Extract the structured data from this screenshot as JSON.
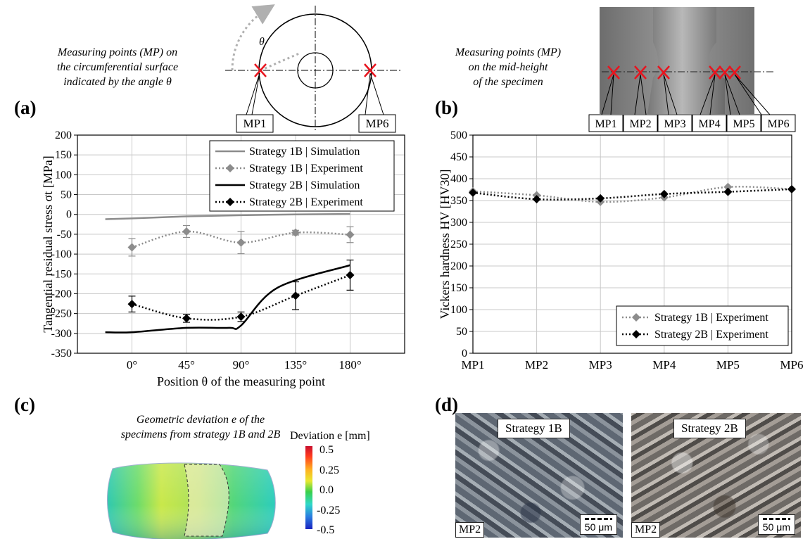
{
  "panel_a": {
    "label": "(a)",
    "note_lines": [
      "Measuring points (MP) on",
      "the circumferential surface",
      "indicated by the angle θ"
    ],
    "angle_symbol": "θ",
    "mp_left": "MP1",
    "mp_right": "MP6"
  },
  "panel_b": {
    "label": "(b)",
    "note_lines": [
      "Measuring points (MP)",
      "on the mid-height",
      "of the specimen"
    ],
    "mp_labels": [
      "MP1",
      "MP2",
      "MP3",
      "MP4",
      "MP5",
      "MP6"
    ]
  },
  "panel_c": {
    "label": "(c)"
  },
  "panel_d": {
    "label": "(d)"
  },
  "deviation": {
    "note_lines": [
      "Geometric deviation e of the",
      "specimens from strategy 1B and 2B"
    ],
    "legend_title": "Deviation e [mm]",
    "legend_ticks": [
      "0.5",
      "0.25",
      "0.0",
      "-0.25",
      "-0.5"
    ]
  },
  "micrographs": [
    {
      "title": "Strategy 1B",
      "mp": "MP2",
      "scale": "50 μm"
    },
    {
      "title": "Strategy 2B",
      "mp": "MP2",
      "scale": "50 μm"
    }
  ],
  "colors": {
    "grey_series": "#8c8c8c",
    "black_series": "#000000",
    "grid": "#c8c8c8",
    "marker_red": "#e8141e"
  },
  "chart_data": [
    {
      "type": "line",
      "categories": [
        "0°",
        "45°",
        "90°",
        "135°",
        "180°"
      ],
      "xlabel": "Position θ of the measuring point",
      "ylabel": "Tangential residual stress σt [MPa]",
      "ylim": [
        -350,
        200
      ],
      "yticks": [
        "200",
        "150",
        "100",
        "50",
        "0",
        "-50",
        "-100",
        "-150",
        "-200",
        "-250",
        "-300",
        "-350"
      ],
      "grid": true,
      "legend_position": "top-right",
      "series": [
        {
          "name": "Strategy 1B | Simulation",
          "style": "solid-grey",
          "x": [
            -22,
            0,
            45,
            90,
            135,
            180
          ],
          "values": [
            -12,
            -10,
            -5,
            -2,
            0,
            1
          ]
        },
        {
          "name": "Strategy 1B | Experiment",
          "style": "dotted-grey-diamond",
          "x": [
            0,
            45,
            90,
            135,
            180
          ],
          "values": [
            -83,
            -43,
            -71,
            -46,
            -51
          ],
          "errors": [
            22,
            15,
            28,
            6,
            20
          ]
        },
        {
          "name": "Strategy 2B | Simulation",
          "style": "solid-black",
          "x": [
            -22,
            0,
            45,
            80,
            90,
            120,
            180
          ],
          "values": [
            -297,
            -297,
            -286,
            -286,
            -280,
            -185,
            -128
          ]
        },
        {
          "name": "Strategy 2B | Experiment",
          "style": "dotted-black-diamond",
          "x": [
            0,
            45,
            90,
            135,
            180
          ],
          "values": [
            -226,
            -262,
            -258,
            -205,
            -153
          ],
          "errors": [
            20,
            10,
            12,
            35,
            38
          ]
        }
      ]
    },
    {
      "type": "line",
      "categories": [
        "MP1",
        "MP2",
        "MP3",
        "MP4",
        "MP5",
        "MP6"
      ],
      "xlabel": "",
      "ylabel": "Vickers hardness HV [HV30]",
      "ylim": [
        0,
        500
      ],
      "yticks": [
        "500",
        "450",
        "400",
        "350",
        "300",
        "250",
        "200",
        "150",
        "100",
        "50",
        "0"
      ],
      "grid": true,
      "legend_position": "bottom-right",
      "series": [
        {
          "name": "Strategy 1B | Experiment",
          "style": "dotted-grey-diamond",
          "values": [
            371,
            362,
            347,
            357,
            381,
            376
          ]
        },
        {
          "name": "Strategy 2B | Experiment",
          "style": "dotted-black-diamond",
          "values": [
            368,
            353,
            355,
            365,
            370,
            376
          ]
        }
      ]
    }
  ]
}
